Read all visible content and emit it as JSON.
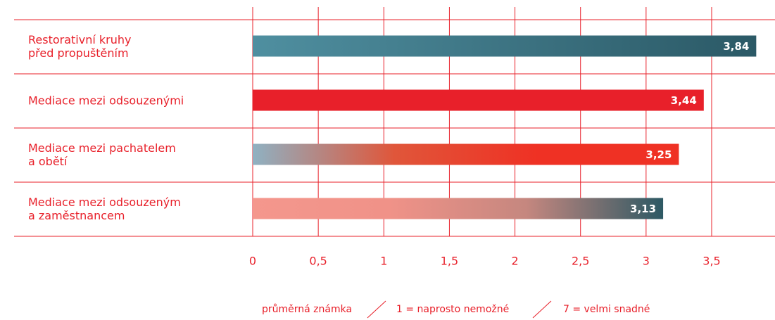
{
  "chart_data": {
    "type": "barh",
    "categories": [
      "Restorativní kruhy\npřed propuštěním",
      "Mediace mezi odsouzenými",
      "Mediace mezi pachatelem\na obětí",
      "Mediace mezi odsouzeným\na zaměstnancem"
    ],
    "values": [
      3.84,
      3.44,
      3.25,
      3.13
    ],
    "value_labels": [
      "3,84",
      "3,44",
      "3,25",
      "3,13"
    ],
    "colors": [
      [
        "#4f8fa0",
        "#2b5966"
      ],
      [
        "#e8202a",
        "#e8202a"
      ],
      [
        "#8fb1c2",
        "#e0563a",
        "#ef3124",
        "#ef3124"
      ],
      [
        "#f4978d",
        "#f09288",
        "#c5877f",
        "#2d5964"
      ]
    ],
    "xlim": [
      0,
      3.5
    ],
    "xticks": [
      0,
      {
        "value": 0.5,
        "label": "0,5"
      },
      1,
      {
        "value": 1.5,
        "label": "1,5"
      },
      2,
      {
        "value": 2.5,
        "label": "2,5"
      },
      3,
      {
        "value": 3.5,
        "label": "3,5"
      }
    ],
    "grid": true,
    "annotations": [
      "průměrná známka",
      "1 = naprosto nemožné",
      "7 = velmi snadné"
    ]
  }
}
